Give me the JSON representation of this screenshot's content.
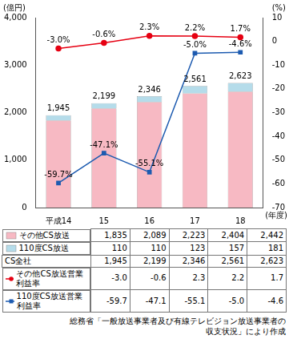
{
  "chart_data": {
    "type": "bar",
    "stacked": true,
    "grid": false,
    "data_labels": true,
    "categories": [
      "平成14",
      "15",
      "16",
      "17",
      "18"
    ],
    "xlabel": "(年度)",
    "ylabel": "(億円)",
    "y2label": "(%)",
    "ylim": [
      0,
      4000
    ],
    "yticks": [
      0,
      {
        "value": 1000,
        "label": "1,000"
      },
      {
        "value": 2000,
        "label": "2,000"
      },
      {
        "value": 3000,
        "label": "3,000"
      },
      {
        "value": 4000,
        "label": "4,000"
      }
    ],
    "y2lim": [
      -70,
      10
    ],
    "y2ticks": [
      -70,
      -60,
      -50,
      -40,
      -30,
      -20,
      -10,
      0,
      10
    ],
    "series": [
      {
        "name": "その他CS放送",
        "type": "bar",
        "color": "#f7b9c3",
        "values": [
          1835,
          2089,
          2223,
          2404,
          2442
        ]
      },
      {
        "name": "110度CS放送",
        "type": "bar",
        "color": "#b5dcea",
        "values": [
          110,
          110,
          123,
          157,
          181
        ]
      },
      {
        "name": "その他CS放送営業利益率",
        "type": "line",
        "axis": "y2",
        "color": "#e60012",
        "marker": "circle",
        "line_style": "solid",
        "values": [
          -3.0,
          -0.6,
          2.3,
          2.2,
          1.7
        ],
        "value_labels": [
          "-3.0%",
          "-0.6%",
          "2.3%",
          "2.2%",
          "1.7%"
        ]
      },
      {
        "name": "110度CS放送営業利益率",
        "type": "line",
        "axis": "y2",
        "color": "#1d5bb0",
        "marker": "square",
        "line_style": "solid",
        "values": [
          -59.7,
          -47.1,
          -55.1,
          -5.0,
          -4.6
        ],
        "value_labels": [
          "-59.7%",
          "-47.1%",
          "-55.1%",
          "-5.0%",
          "-4.6%"
        ]
      }
    ],
    "totals": {
      "name": "CS全社",
      "values": [
        1945,
        2199,
        2346,
        2561,
        2623
      ],
      "value_labels": [
        "1,945",
        "2,199",
        "2,346",
        "2,561",
        "2,623"
      ]
    },
    "table": {
      "rows": [
        {
          "name": "その他CS放送",
          "cells": [
            "1,835",
            "2,089",
            "2,223",
            "2,404",
            "2,442"
          ]
        },
        {
          "name": "110度CS放送",
          "cells": [
            "110",
            "110",
            "123",
            "157",
            "181"
          ]
        },
        {
          "name": "CS全社",
          "cells": [
            "1,945",
            "2,199",
            "2,346",
            "2,561",
            "2,623"
          ]
        },
        {
          "name": "その他CS放送営業利益率",
          "cells": [
            "-3.0",
            "-0.6",
            "2.3",
            "2.2",
            "1.7"
          ]
        },
        {
          "name": "110度CS放送営業利益率",
          "cells": [
            "-59.7",
            "-47.1",
            "-55.1",
            "-5.0",
            "-4.6"
          ]
        }
      ]
    },
    "source": [
      "総務省「一般放送事業者及び有線テレビジョン放送事業者の",
      "収支状況」により作成"
    ]
  }
}
